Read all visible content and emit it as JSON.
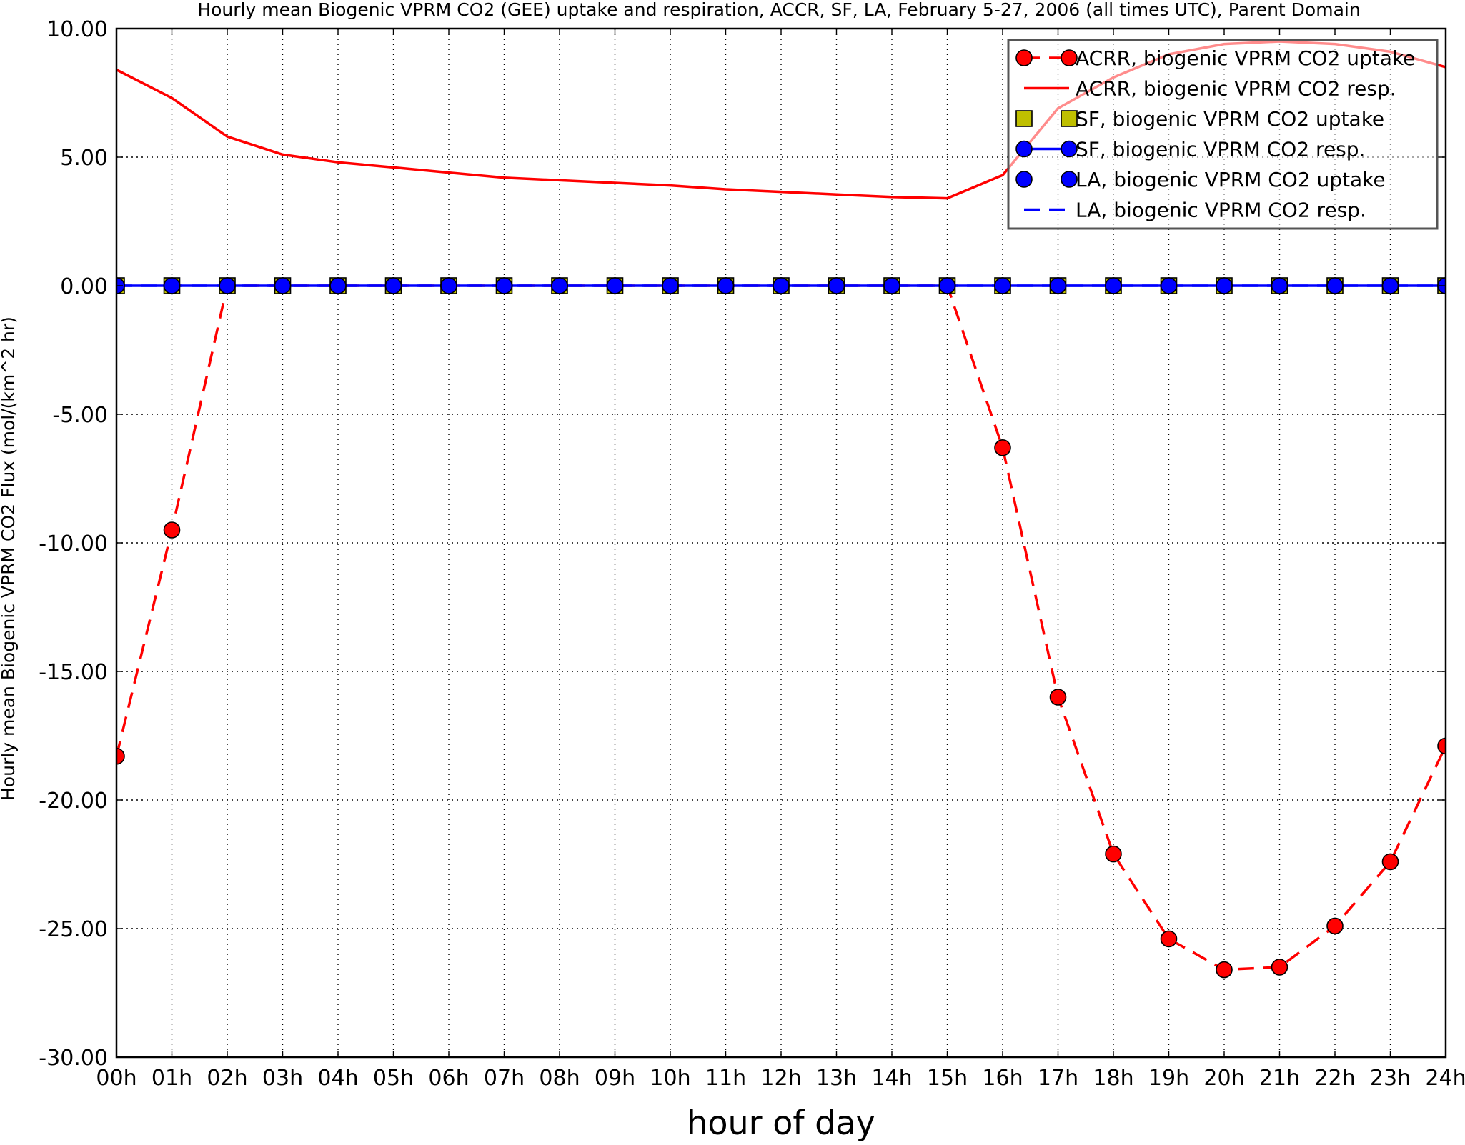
{
  "chart_data": {
    "type": "line",
    "title": "Hourly mean Biogenic VPRM CO2 (GEE) uptake and respiration, ACCR, SF, LA, February 5-27, 2006 (all times UTC), Parent Domain",
    "xlabel": "hour of day",
    "ylabel": "Hourly mean Biogenic VPRM CO2 Flux (mol/(km^2 hr)",
    "xlim": [
      0,
      24
    ],
    "ylim": [
      -30,
      10
    ],
    "x": [
      0,
      1,
      2,
      3,
      4,
      5,
      6,
      7,
      8,
      9,
      10,
      11,
      12,
      13,
      14,
      15,
      16,
      17,
      18,
      19,
      20,
      21,
      22,
      23,
      24
    ],
    "x_tick_labels": [
      "00h",
      "01h",
      "02h",
      "03h",
      "04h",
      "05h",
      "06h",
      "07h",
      "08h",
      "09h",
      "10h",
      "11h",
      "12h",
      "13h",
      "14h",
      "15h",
      "16h",
      "17h",
      "18h",
      "19h",
      "20h",
      "21h",
      "22h",
      "23h",
      "24h"
    ],
    "y_ticks": [
      10,
      5,
      0,
      -5,
      -10,
      -15,
      -20,
      -25,
      -30
    ],
    "y_tick_labels": [
      "10.00",
      "5.00",
      "0.00",
      "-5.00",
      "-10.00",
      "-15.00",
      "-20.00",
      "-25.00",
      "-30.00"
    ],
    "grid": true,
    "legend_position": "top-right",
    "series": [
      {
        "name": "ACRR, biogenic VPRM CO2 uptake",
        "color": "#ff0000",
        "line": "dashed",
        "marker": "circle",
        "values": [
          -18.3,
          -9.5,
          0,
          0,
          0,
          0,
          0,
          0,
          0,
          0,
          0,
          0,
          0,
          0,
          0,
          0,
          -6.3,
          -16.0,
          -22.1,
          -25.4,
          -26.6,
          -26.5,
          -24.9,
          -22.4,
          -17.9
        ]
      },
      {
        "name": "ACRR, biogenic VPRM CO2 resp.",
        "color": "#ff0000",
        "line": "solid",
        "marker": "none",
        "values": [
          8.4,
          7.3,
          5.8,
          5.1,
          4.8,
          4.6,
          4.4,
          4.2,
          4.1,
          4.0,
          3.9,
          3.75,
          3.65,
          3.55,
          3.45,
          3.4,
          4.3,
          6.9,
          8.1,
          9.0,
          9.4,
          9.5,
          9.4,
          9.1,
          8.5
        ]
      },
      {
        "name": "SF, biogenic VPRM CO2 uptake",
        "color": "#bfbf00",
        "line": "none",
        "marker": "square",
        "values": [
          0,
          0,
          0,
          0,
          0,
          0,
          0,
          0,
          0,
          0,
          0,
          0,
          0,
          0,
          0,
          0,
          0,
          0,
          0,
          0,
          0,
          0,
          0,
          0,
          0
        ]
      },
      {
        "name": "SF, biogenic VPRM CO2 resp.",
        "color": "#0000ff",
        "line": "solid",
        "marker": "circle",
        "values": [
          0,
          0,
          0,
          0,
          0,
          0,
          0,
          0,
          0,
          0,
          0,
          0,
          0,
          0,
          0,
          0,
          0,
          0,
          0,
          0,
          0,
          0,
          0,
          0,
          0
        ]
      },
      {
        "name": "LA, biogenic VPRM CO2 uptake",
        "color": "#0000ff",
        "line": "none",
        "marker": "circle",
        "values": [
          0,
          0,
          0,
          0,
          0,
          0,
          0,
          0,
          0,
          0,
          0,
          0,
          0,
          0,
          0,
          0,
          0,
          0,
          0,
          0,
          0,
          0,
          0,
          0,
          0
        ]
      },
      {
        "name": "LA, biogenic VPRM CO2 resp.",
        "color": "#0000ff",
        "line": "dashed",
        "marker": "none",
        "values": [
          0,
          0,
          0,
          0,
          0,
          0,
          0,
          0,
          0,
          0,
          0,
          0,
          0,
          0,
          0,
          0,
          0,
          0,
          0,
          0,
          0,
          0,
          0,
          0,
          0
        ]
      }
    ]
  }
}
